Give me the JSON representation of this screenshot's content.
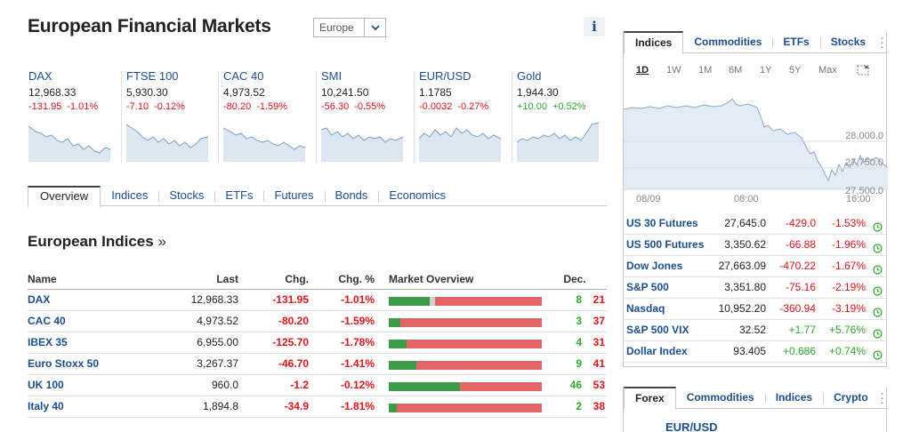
{
  "header": {
    "title": "European Financial Markets",
    "region_select": "Europe",
    "info_label": "i"
  },
  "tickers": [
    {
      "name": "DAX",
      "last": "12,968.33",
      "chg": "-131.95",
      "pct": "-1.01%",
      "dir": "down"
    },
    {
      "name": "FTSE 100",
      "last": "5,930.30",
      "chg": "-7.10",
      "pct": "-0.12%",
      "dir": "down"
    },
    {
      "name": "CAC 40",
      "last": "4,973.52",
      "chg": "-80.20",
      "pct": "-1.59%",
      "dir": "down"
    },
    {
      "name": "SMI",
      "last": "10,241.50",
      "chg": "-56.30",
      "pct": "-0.55%",
      "dir": "down"
    },
    {
      "name": "EUR/USD",
      "last": "1.1785",
      "chg": "-0.0032",
      "pct": "-0.27%",
      "dir": "down"
    },
    {
      "name": "Gold",
      "last": "1,944.30",
      "chg": "+10.00",
      "pct": "+0.52%",
      "dir": "up"
    }
  ],
  "main_tabs": [
    "Overview",
    "Indices",
    "Stocks",
    "ETFs",
    "Futures",
    "Bonds",
    "Economics"
  ],
  "section": {
    "title": "European Indices",
    "more": "»"
  },
  "table": {
    "headers": {
      "name": "Name",
      "last": "Last",
      "chg": "Chg.",
      "pct": "Chg. %",
      "overview": "Market Overview",
      "dec": "Dec."
    },
    "rows": [
      {
        "name": "DAX",
        "last": "12,968.33",
        "chg": "-131.95",
        "pct": "-1.01%",
        "adv": "8",
        "dec": "21",
        "neutral": "1"
      },
      {
        "name": "CAC 40",
        "last": "4,973.52",
        "chg": "-80.20",
        "pct": "-1.59%",
        "adv": "3",
        "dec": "37",
        "neutral": "0"
      },
      {
        "name": "IBEX 35",
        "last": "6,955.00",
        "chg": "-125.70",
        "pct": "-1.78%",
        "adv": "4",
        "dec": "31",
        "neutral": "0"
      },
      {
        "name": "Euro Stoxx 50",
        "last": "3,267.37",
        "chg": "-46.70",
        "pct": "-1.41%",
        "adv": "9",
        "dec": "41",
        "neutral": "0"
      },
      {
        "name": "UK 100",
        "last": "960.0",
        "chg": "-1.2",
        "pct": "-0.12%",
        "adv": "46",
        "dec": "53",
        "neutral": "0"
      },
      {
        "name": "Italy 40",
        "last": "1,894.8",
        "chg": "-34.9",
        "pct": "-1.81%",
        "adv": "2",
        "dec": "38",
        "neutral": "0"
      }
    ]
  },
  "widget": {
    "tabs": [
      "Indices",
      "Commodities",
      "ETFs",
      "Stocks"
    ],
    "ranges": [
      "1D",
      "1W",
      "1M",
      "6M",
      "1Y",
      "5Y",
      "Max"
    ],
    "chart": {
      "y_ticks": [
        "28,000.0",
        "27,750.0",
        "27,500.0"
      ],
      "x_ticks": [
        "08/09",
        "08:00",
        "16:00"
      ]
    },
    "quotes": [
      {
        "name": "US 30 Futures",
        "last": "27,645.0",
        "chg": "-429.0",
        "pct": "-1.53%",
        "dir": "down"
      },
      {
        "name": "US 500 Futures",
        "last": "3,350.62",
        "chg": "-66.88",
        "pct": "-1.96%",
        "dir": "down"
      },
      {
        "name": "Dow Jones",
        "last": "27,663.09",
        "chg": "-470.22",
        "pct": "-1.67%",
        "dir": "down"
      },
      {
        "name": "S&P 500",
        "last": "3,351.80",
        "chg": "-75.16",
        "pct": "-2.19%",
        "dir": "down"
      },
      {
        "name": "Nasdaq",
        "last": "10,952.20",
        "chg": "-360.94",
        "pct": "-3.19%",
        "dir": "down"
      },
      {
        "name": "S&P 500 VIX",
        "last": "32.52",
        "chg": "+1.77",
        "pct": "+5.76%",
        "dir": "up"
      },
      {
        "name": "Dollar Index",
        "last": "93.405",
        "chg": "+0.686",
        "pct": "+0.74%",
        "dir": "up"
      }
    ]
  },
  "forex": {
    "tabs": [
      "Forex",
      "Commodities",
      "Indices",
      "Crypto"
    ],
    "pair": "EUR/USD"
  },
  "colors": {
    "up": "#2daa2d",
    "down": "#e1141a",
    "link": "#1c4e8f",
    "bar_green": "#3d9a47",
    "bar_red": "#e06666"
  }
}
